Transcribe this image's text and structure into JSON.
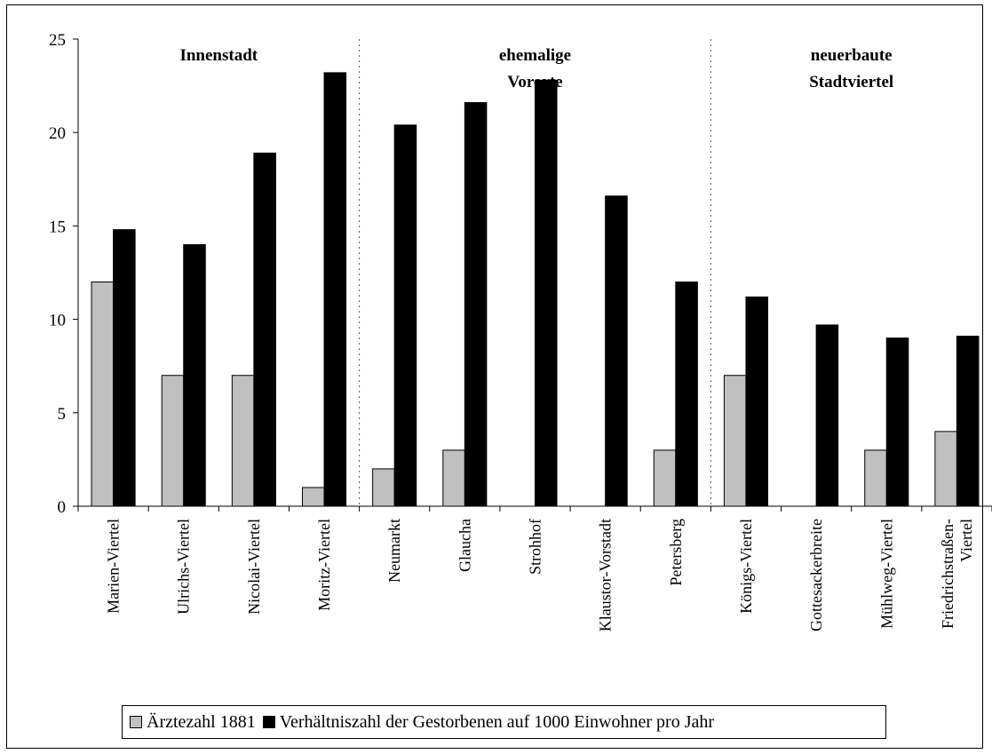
{
  "chart_data": {
    "type": "bar",
    "ylim": [
      0,
      25
    ],
    "yticks": [
      0,
      5,
      10,
      15,
      20,
      25
    ],
    "grid": false,
    "legend_position": "bottom",
    "categories": [
      [
        "Marien-Viertel"
      ],
      [
        "Ulrichs-Viertel"
      ],
      [
        "Nicolai-Viertel"
      ],
      [
        "Moritz-Viertel"
      ],
      [
        "Neumarkt"
      ],
      [
        "Glaucha"
      ],
      [
        "Strohhof"
      ],
      [
        "Klaustor-Vorstadt"
      ],
      [
        "Petersberg"
      ],
      [
        "Königs-Viertel"
      ],
      [
        "Gottesackerbreite"
      ],
      [
        "Mühlweg-Viertel"
      ],
      [
        "Friedrichstraßen-",
        "Viertel"
      ]
    ],
    "series": [
      {
        "name": "Ärztezahl 1881",
        "color": "#c0c0c0",
        "values": [
          12,
          7,
          7,
          1,
          2,
          3,
          0,
          0,
          3,
          7,
          0,
          3,
          4
        ]
      },
      {
        "name": "Verhältniszahl der Gestorbenen auf 1000 Einwohner pro Jahr",
        "color": "#000000",
        "values": [
          14.8,
          14.0,
          18.9,
          23.2,
          20.4,
          21.6,
          22.8,
          16.6,
          12.0,
          11.2,
          9.7,
          9.0,
          9.1
        ]
      }
    ],
    "groups": [
      {
        "lines": [
          "Innenstadt"
        ],
        "start": 0,
        "end": 3
      },
      {
        "lines": [
          "ehemalige",
          "Vororte"
        ],
        "start": 4,
        "end": 8
      },
      {
        "lines": [
          "neuerbaute",
          "Stadtviertel"
        ],
        "start": 9,
        "end": 12
      }
    ]
  }
}
